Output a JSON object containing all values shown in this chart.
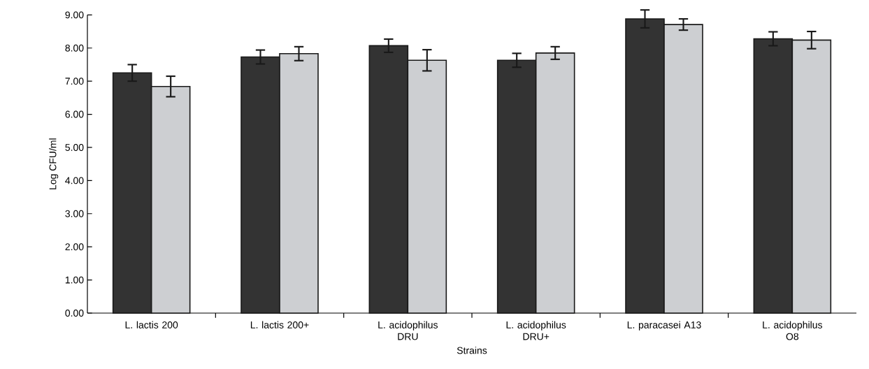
{
  "chart_data": {
    "type": "bar",
    "xlabel": "Strains",
    "ylabel": "Log CFU/ml",
    "categories": [
      "L. lactis 200",
      "L. lactis 200+",
      "L. acidophilus DRU",
      "L. acidophilus DRU+",
      "L. paracasei A13",
      "L. acidophilus O8"
    ],
    "series": [
      {
        "color": "#333333",
        "values": [
          7.25,
          7.73,
          8.07,
          7.63,
          8.88,
          8.28
        ],
        "errors": [
          0.25,
          0.21,
          0.2,
          0.21,
          0.27,
          0.21
        ]
      },
      {
        "color": "#cdcfd2",
        "values": [
          6.84,
          7.83,
          7.63,
          7.85,
          8.71,
          8.24
        ],
        "errors": [
          0.31,
          0.21,
          0.32,
          0.19,
          0.17,
          0.26
        ]
      }
    ],
    "ylim": [
      0,
      9
    ],
    "yticks": [
      {
        "value": 0,
        "label": "0.00"
      },
      {
        "value": 1,
        "label": "1.00"
      },
      {
        "value": 2,
        "label": "2.00"
      },
      {
        "value": 3,
        "label": "3.00"
      },
      {
        "value": 4,
        "label": "4.00"
      },
      {
        "value": 5,
        "label": "5.00"
      },
      {
        "value": 6,
        "label": "6.00"
      },
      {
        "value": 7,
        "label": "7.00"
      },
      {
        "value": 8,
        "label": "8.00"
      },
      {
        "value": 9,
        "label": "9.00"
      }
    ],
    "grid": false,
    "legend": false
  }
}
